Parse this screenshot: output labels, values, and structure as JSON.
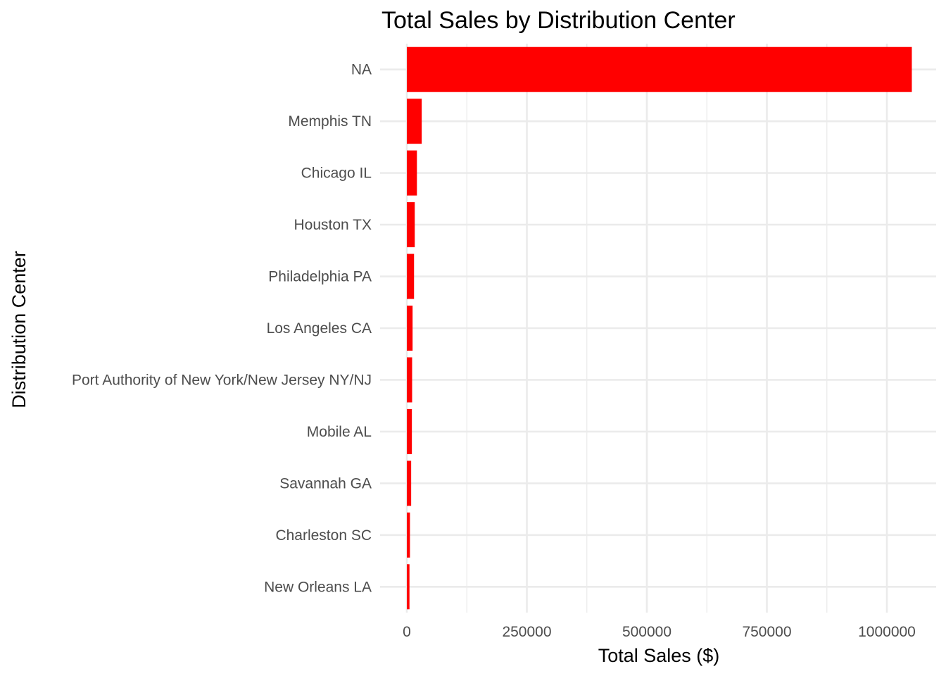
{
  "chart_data": {
    "type": "bar",
    "orientation": "horizontal",
    "title": "Total Sales by Distribution Center",
    "xlabel": "Total Sales ($)",
    "ylabel": "Distribution Center",
    "categories": [
      "NA",
      "Memphis TN",
      "Chicago IL",
      "Houston TX",
      "Philadelphia PA",
      "Los Angeles CA",
      "Port Authority of New York/New Jersey NY/NJ",
      "Mobile AL",
      "Savannah GA",
      "Charleston SC",
      "New Orleans LA"
    ],
    "values": [
      1052000,
      31000,
      21000,
      16500,
      15000,
      12000,
      11000,
      10500,
      9000,
      6500,
      5500
    ],
    "xlim": [
      0,
      1052000
    ],
    "xticks": [
      0,
      250000,
      500000,
      750000,
      1000000
    ],
    "xtick_labels": [
      "0",
      "250000",
      "500000",
      "750000",
      "1000000"
    ],
    "bar_color": "#ff0000",
    "grid": true,
    "legend": "none",
    "background": "#ffffff"
  }
}
